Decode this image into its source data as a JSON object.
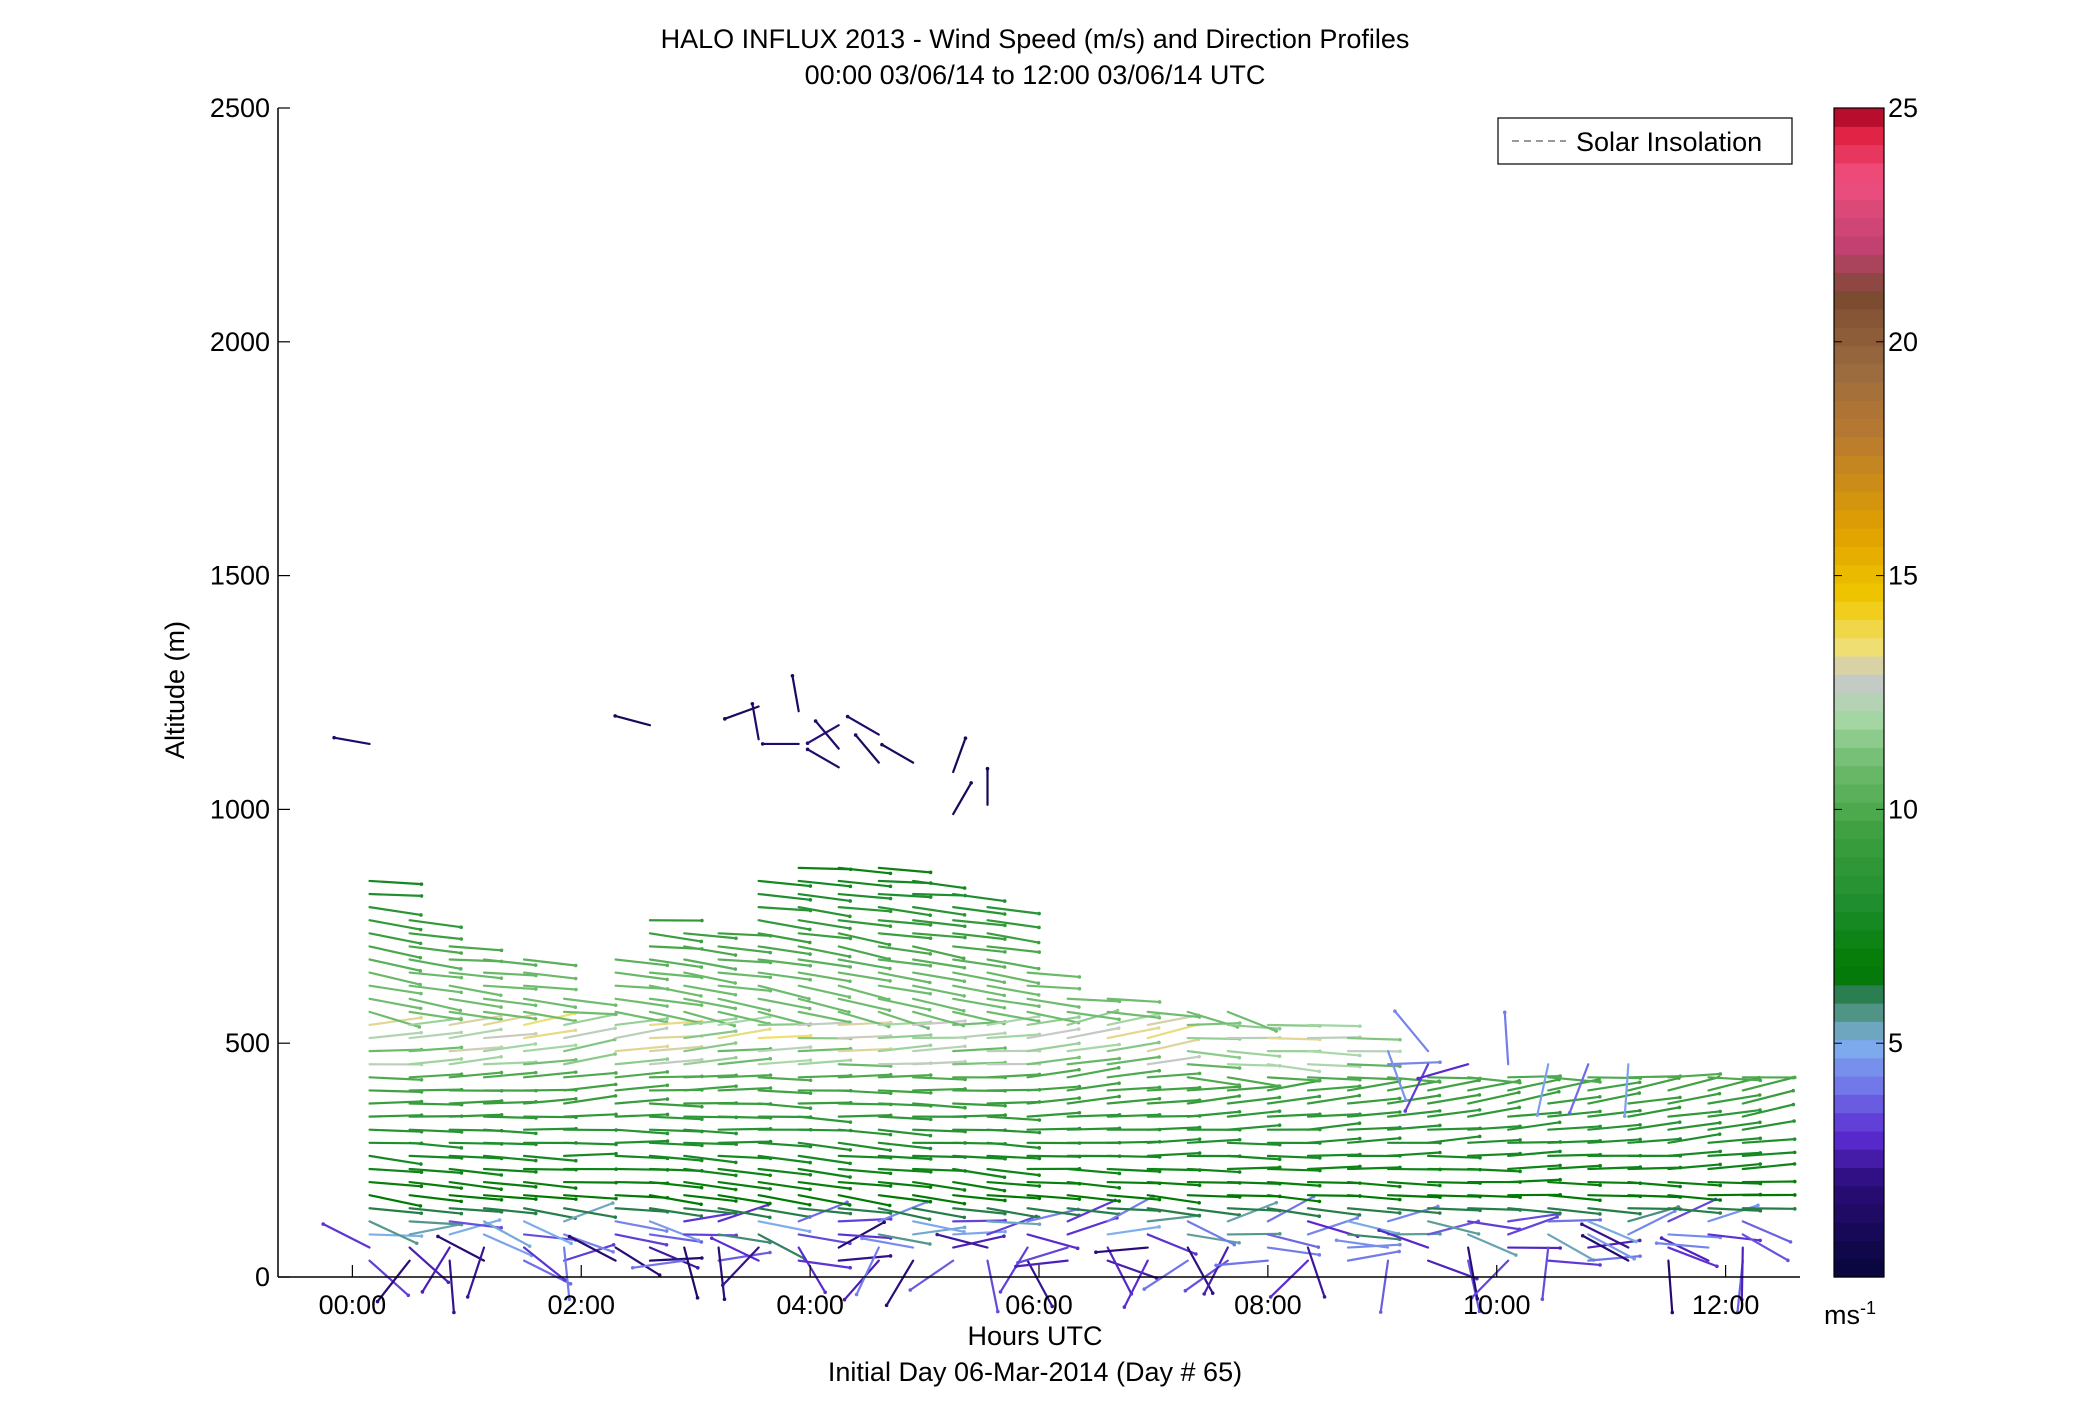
{
  "chart_data": {
    "type": "wind-barb profile",
    "title": "HALO INFLUX 2013 - Wind Speed (m/s) and Direction Profiles",
    "subtitle": "00:00 03/06/14 to 12:00 03/06/14  UTC",
    "xlabel": "Hours UTC",
    "xlabel2": "Initial Day 06-Mar-2014 (Day # 65)",
    "ylabel": "Altitude (m)",
    "xlim": [
      -0.65,
      12.65
    ],
    "ylim": [
      0,
      2500
    ],
    "x_ticks": [
      0,
      2,
      4,
      6,
      8,
      10,
      12
    ],
    "x_tick_labels": [
      "00:00",
      "02:00",
      "04:00",
      "06:00",
      "08:00",
      "10:00",
      "12:00"
    ],
    "y_ticks": [
      0,
      500,
      1000,
      1500,
      2000,
      2500
    ],
    "y_tick_labels": [
      "0",
      "500",
      "1000",
      "1500",
      "2000",
      "2500"
    ],
    "legend": {
      "position": "top-right",
      "entries": [
        "Solar Insolation"
      ],
      "line_style": "dashed",
      "color": "#999999"
    },
    "colorbar": {
      "range": [
        0,
        25
      ],
      "ticks": [
        5,
        10,
        15,
        20,
        25
      ],
      "tick_labels": [
        "5",
        "10",
        "15",
        "20",
        "25"
      ],
      "unit_label": "ms",
      "unit_exponent": "-1",
      "colors": [
        "#06063a",
        "#2a0c78",
        "#5a2ad0",
        "#7070e8",
        "#7fb0ee",
        "#5f9e9a",
        "#2f7e5a",
        "#007a00",
        "#1e8e2e",
        "#3ea040",
        "#6fbc6f",
        "#a8d8a8",
        "#c8c8c8",
        "#f0e070",
        "#f0c800",
        "#e0a000",
        "#b87a30",
        "#9a6a40",
        "#7a4a30",
        "#c04070",
        "#f05080",
        "#e02040",
        "#a00020"
      ],
      "color_stops": [
        0,
        2,
        3,
        4,
        5,
        5.5,
        6,
        6.5,
        8,
        9.5,
        11,
        12,
        12.8,
        13.5,
        14.5,
        16,
        18,
        19.5,
        21,
        22,
        23.5,
        24.5,
        25
      ]
    },
    "profiles": {
      "times_hours": [
        0.15,
        0.5,
        0.85,
        1.15,
        1.5,
        1.85,
        2.3,
        2.6,
        2.9,
        3.2,
        3.55,
        3.9,
        4.25,
        4.6,
        4.9,
        5.25,
        5.55,
        5.9,
        6.25,
        6.6,
        6.95,
        7.3,
        7.65,
        8.0,
        8.35,
        8.7,
        9.05,
        9.4,
        9.75,
        10.1,
        10.45,
        10.8,
        11.15,
        11.5,
        11.85,
        12.15
      ],
      "top_altitude_m": [
        870,
        770,
        730,
        700,
        690,
        600,
        690,
        770,
        760,
        740,
        870,
        890,
        890,
        880,
        860,
        840,
        810,
        660,
        610,
        600,
        590,
        580,
        570,
        560,
        540,
        520,
        500,
        490,
        480,
        480,
        470,
        470,
        470,
        440,
        440,
        430
      ],
      "spacing_m": 28,
      "speed_profile_m_s": {
        "surface": 3,
        "near_surface_100m": 6,
        "boundary_layer_500m": 11,
        "max_core": 14
      },
      "direction_note": "westerly to north-westerly flow in the boundary layer, variable light winds near the surface and above 500 m after 09:00"
    },
    "upper_points": [
      {
        "t": 0.15,
        "alt": 1140,
        "speed": 1.5,
        "dir_deg": 280
      },
      {
        "t": 2.6,
        "alt": 1180,
        "speed": 1.0,
        "dir_deg": 285
      },
      {
        "t": 3.55,
        "alt": 1220,
        "speed": 1.2,
        "dir_deg": 250
      },
      {
        "t": 3.55,
        "alt": 1150,
        "speed": 1.5,
        "dir_deg": 350
      },
      {
        "t": 3.9,
        "alt": 1210,
        "speed": 1.2,
        "dir_deg": 350
      },
      {
        "t": 3.9,
        "alt": 1140,
        "speed": 1.5,
        "dir_deg": 270
      },
      {
        "t": 4.25,
        "alt": 1180,
        "speed": 2.0,
        "dir_deg": 240
      },
      {
        "t": 4.25,
        "alt": 1130,
        "speed": 1.5,
        "dir_deg": 320
      },
      {
        "t": 4.25,
        "alt": 1090,
        "speed": 1.5,
        "dir_deg": 300
      },
      {
        "t": 4.6,
        "alt": 1160,
        "speed": 1.5,
        "dir_deg": 300
      },
      {
        "t": 4.6,
        "alt": 1100,
        "speed": 1.2,
        "dir_deg": 320
      },
      {
        "t": 4.9,
        "alt": 1100,
        "speed": 1.2,
        "dir_deg": 300
      },
      {
        "t": 5.25,
        "alt": 1080,
        "speed": 1.0,
        "dir_deg": 20
      },
      {
        "t": 5.25,
        "alt": 990,
        "speed": 1.0,
        "dir_deg": 30
      },
      {
        "t": 5.55,
        "alt": 1010,
        "speed": 0.8,
        "dir_deg": 0
      }
    ]
  }
}
